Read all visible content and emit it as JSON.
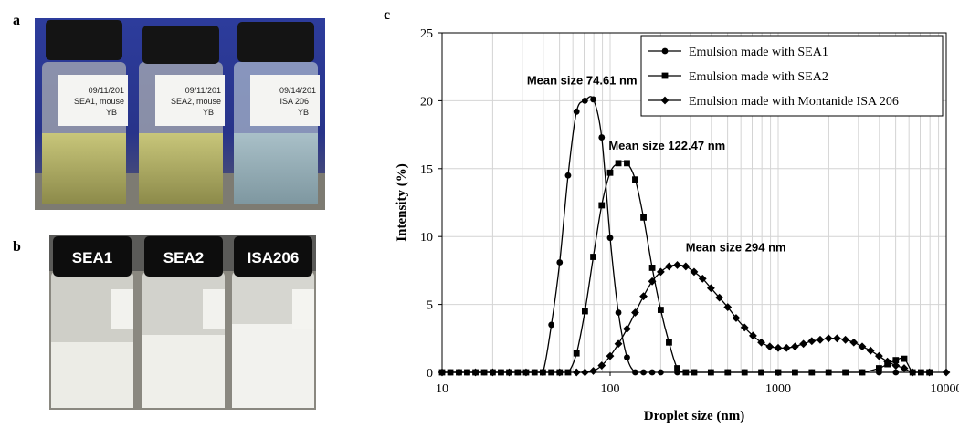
{
  "panels": {
    "a": "a",
    "b": "b",
    "c": "c"
  },
  "photo_a": {
    "labels": [
      {
        "date": "09/11/201",
        "line2": "SEA1, mouse",
        "line3": "YB"
      },
      {
        "date": "09/11/201",
        "line2": "SEA2, mouse",
        "line3": "YB"
      },
      {
        "date": "09/14/201",
        "line2": "ISA 206",
        "line3": "YB"
      }
    ]
  },
  "photo_b": {
    "caps": [
      "SEA1",
      "SEA2",
      "ISA206"
    ]
  },
  "chart_data": {
    "type": "line",
    "xscale": "log",
    "xlim": [
      10,
      10000
    ],
    "ylim": [
      0,
      25
    ],
    "xlabel": "Droplet size (nm)",
    "ylabel": "Intensity (%)",
    "xticks": [
      "10",
      "100",
      "1000",
      "10000"
    ],
    "yticks": [
      "0",
      "5",
      "10",
      "15",
      "20",
      "25"
    ],
    "grid": true,
    "legend_position": "top-right",
    "series": [
      {
        "name": "Emulsion made with SEA1",
        "marker": "circle",
        "points": [
          [
            10,
            0
          ],
          [
            11.2,
            0
          ],
          [
            12.6,
            0
          ],
          [
            14.1,
            0
          ],
          [
            15.8,
            0
          ],
          [
            17.8,
            0
          ],
          [
            20,
            0
          ],
          [
            22.4,
            0
          ],
          [
            25.1,
            0
          ],
          [
            28.2,
            0
          ],
          [
            31.6,
            0
          ],
          [
            35.5,
            0
          ],
          [
            39.8,
            0
          ],
          [
            44.7,
            3.5
          ],
          [
            50.1,
            8.1
          ],
          [
            56.2,
            14.5
          ],
          [
            63.1,
            19.2
          ],
          [
            70.8,
            20.0
          ],
          [
            79.4,
            20.1
          ],
          [
            89.1,
            17.3
          ],
          [
            100,
            9.9
          ],
          [
            112,
            4.4
          ],
          [
            126,
            1.1
          ],
          [
            141,
            0
          ],
          [
            158,
            0
          ],
          [
            178,
            0
          ],
          [
            200,
            0
          ],
          [
            251,
            0
          ],
          [
            316,
            0
          ],
          [
            398,
            0
          ],
          [
            501,
            0
          ],
          [
            631,
            0
          ],
          [
            794,
            0
          ],
          [
            1000,
            0
          ],
          [
            1259,
            0
          ],
          [
            1585,
            0
          ],
          [
            1995,
            0
          ],
          [
            2512,
            0
          ],
          [
            3162,
            0
          ],
          [
            3981,
            0
          ],
          [
            5012,
            0
          ],
          [
            6310,
            0
          ],
          [
            7943,
            0
          ]
        ]
      },
      {
        "name": "Emulsion made with SEA2",
        "marker": "square",
        "points": [
          [
            10,
            0
          ],
          [
            11.2,
            0
          ],
          [
            12.6,
            0
          ],
          [
            14.1,
            0
          ],
          [
            15.8,
            0
          ],
          [
            17.8,
            0
          ],
          [
            20,
            0
          ],
          [
            22.4,
            0
          ],
          [
            25.1,
            0
          ],
          [
            28.2,
            0
          ],
          [
            31.6,
            0
          ],
          [
            35.5,
            0
          ],
          [
            39.8,
            0
          ],
          [
            44.7,
            0
          ],
          [
            50.1,
            0
          ],
          [
            56.2,
            0
          ],
          [
            63.1,
            1.4
          ],
          [
            70.8,
            4.5
          ],
          [
            79.4,
            8.5
          ],
          [
            89.1,
            12.3
          ],
          [
            100,
            14.7
          ],
          [
            112,
            15.4
          ],
          [
            126,
            15.4
          ],
          [
            141,
            14.2
          ],
          [
            158,
            11.4
          ],
          [
            178,
            7.7
          ],
          [
            200,
            4.6
          ],
          [
            224,
            2.2
          ],
          [
            251,
            0.3
          ],
          [
            282,
            0
          ],
          [
            316,
            0
          ],
          [
            398,
            0
          ],
          [
            501,
            0
          ],
          [
            631,
            0
          ],
          [
            794,
            0
          ],
          [
            1000,
            0
          ],
          [
            1259,
            0
          ],
          [
            1585,
            0
          ],
          [
            1995,
            0
          ],
          [
            2512,
            0
          ],
          [
            3162,
            0
          ],
          [
            3981,
            0.3
          ],
          [
            4467,
            0.6
          ],
          [
            5012,
            0.9
          ],
          [
            5623,
            1.0
          ],
          [
            6310,
            0
          ],
          [
            7079,
            0
          ],
          [
            7943,
            0
          ]
        ]
      },
      {
        "name": "Emulsion made with Montanide ISA 206",
        "marker": "diamond",
        "points": [
          [
            10,
            0
          ],
          [
            12.6,
            0
          ],
          [
            15.8,
            0
          ],
          [
            20,
            0
          ],
          [
            25.1,
            0
          ],
          [
            31.6,
            0
          ],
          [
            39.8,
            0
          ],
          [
            50.1,
            0
          ],
          [
            63.1,
            0
          ],
          [
            70.8,
            0
          ],
          [
            79.4,
            0.1
          ],
          [
            89.1,
            0.5
          ],
          [
            100,
            1.2
          ],
          [
            112,
            2.1
          ],
          [
            126,
            3.2
          ],
          [
            141,
            4.4
          ],
          [
            158,
            5.6
          ],
          [
            178,
            6.7
          ],
          [
            200,
            7.4
          ],
          [
            224,
            7.8
          ],
          [
            251,
            7.9
          ],
          [
            282,
            7.8
          ],
          [
            316,
            7.4
          ],
          [
            355,
            6.9
          ],
          [
            398,
            6.2
          ],
          [
            447,
            5.5
          ],
          [
            501,
            4.8
          ],
          [
            562,
            4.0
          ],
          [
            631,
            3.3
          ],
          [
            708,
            2.7
          ],
          [
            794,
            2.2
          ],
          [
            891,
            1.9
          ],
          [
            1000,
            1.8
          ],
          [
            1122,
            1.8
          ],
          [
            1259,
            1.9
          ],
          [
            1413,
            2.1
          ],
          [
            1585,
            2.3
          ],
          [
            1778,
            2.4
          ],
          [
            1995,
            2.5
          ],
          [
            2239,
            2.5
          ],
          [
            2512,
            2.4
          ],
          [
            2818,
            2.2
          ],
          [
            3162,
            1.9
          ],
          [
            3548,
            1.6
          ],
          [
            3981,
            1.2
          ],
          [
            4467,
            0.8
          ],
          [
            5012,
            0.5
          ],
          [
            5623,
            0.3
          ],
          [
            6310,
            0
          ],
          [
            7943,
            0
          ],
          [
            10000,
            0
          ]
        ]
      }
    ],
    "annotations": [
      {
        "text": "Mean size 74.61 nm",
        "x": 68,
        "y": 21.2
      },
      {
        "text": "Mean size 122.47 nm",
        "x": 218,
        "y": 16.4
      },
      {
        "text": "Mean size 294 nm",
        "x": 560,
        "y": 8.9
      }
    ]
  }
}
